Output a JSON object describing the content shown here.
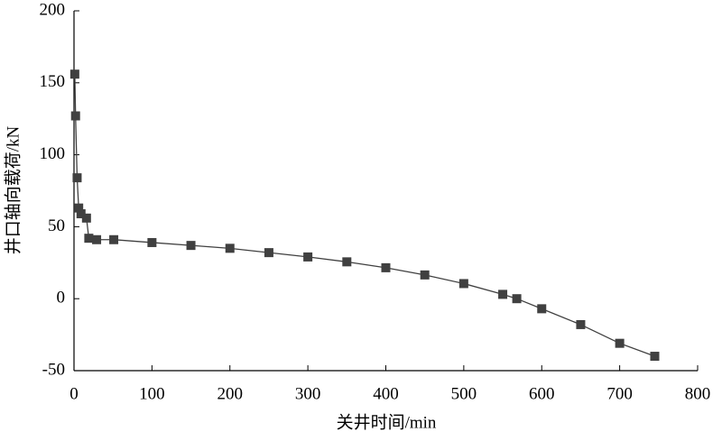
{
  "chart_data": {
    "type": "line",
    "x_label": "关井时间/min",
    "y_label": "井口轴向载荷/kN",
    "x": [
      1,
      2,
      4,
      6,
      9,
      16,
      19,
      29,
      51,
      100,
      150,
      200,
      250,
      300,
      350,
      400,
      450,
      500,
      550,
      568,
      600,
      650,
      700,
      745
    ],
    "values": [
      156,
      127,
      84,
      63,
      59,
      56,
      42,
      41,
      41,
      39,
      37,
      35,
      32,
      29,
      25.6,
      21.5,
      16.5,
      10.5,
      3,
      0,
      -7,
      -18,
      -31,
      -40
    ],
    "color": "#404040",
    "xlim": [
      0,
      800
    ],
    "xticks": [
      0,
      100,
      200,
      300,
      400,
      500,
      600,
      700,
      800
    ],
    "ylim": [
      -50,
      200
    ],
    "yticks": [
      -50,
      0,
      50,
      100,
      150,
      200
    ]
  }
}
